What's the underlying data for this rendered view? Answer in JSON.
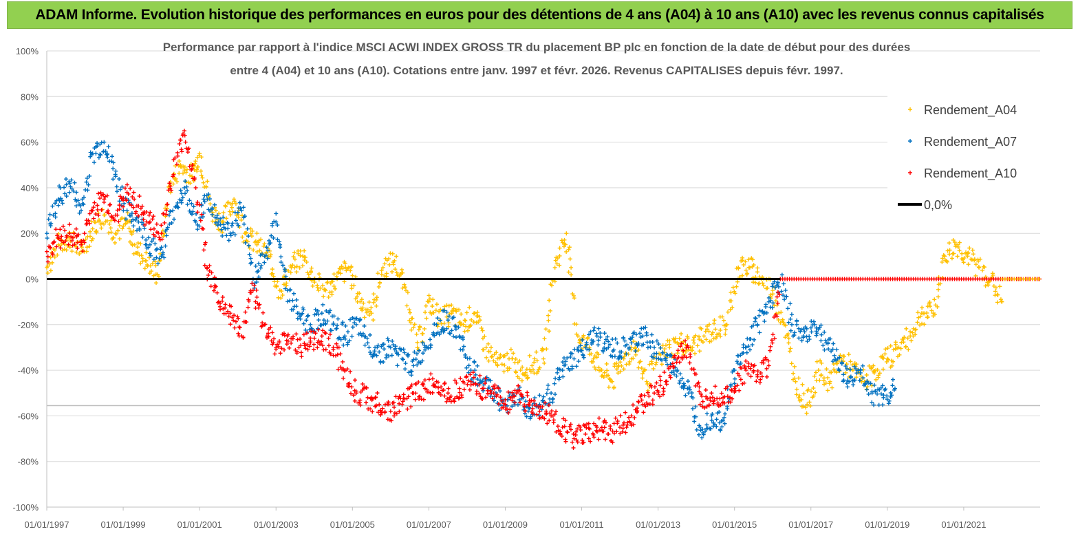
{
  "banner": {
    "title": "ADAM Informe. Evolution historique des performances en euros pour des détentions de 4 ans (A04) à 10 ans (A10) avec les revenus connus capitalisés"
  },
  "chart_data": {
    "type": "scatter",
    "title_line1": "Performance par rapport à l'indice MSCI ACWI INDEX GROSS TR  du placement BP plc en fonction de la date de début pour des durées",
    "title_line2": "entre 4 (A04) et 10 ans (A10). Cotations entre janv. 1997 et févr. 2026. Revenus CAPITALISES depuis févr. 1997.",
    "xlabel": "",
    "ylabel": "",
    "xlim": [
      1997.0,
      2023.0
    ],
    "ylim": [
      -100,
      100
    ],
    "y_ticks": [
      100,
      80,
      60,
      40,
      20,
      0,
      -20,
      -40,
      -60,
      -80,
      -100
    ],
    "y_tick_labels": [
      "100%",
      "80%",
      "60%",
      "40%",
      "20%",
      "0%",
      "-20%",
      "-40%",
      "-60%",
      "-80%",
      "-100%"
    ],
    "x_ticks": [
      1997,
      1999,
      2001,
      2003,
      2005,
      2007,
      2009,
      2011,
      2013,
      2015,
      2017,
      2019,
      2021
    ],
    "x_tick_labels": [
      "01/01/1997",
      "01/01/1999",
      "01/01/2001",
      "01/01/2003",
      "01/01/2005",
      "01/01/2007",
      "01/01/2009",
      "01/01/2011",
      "01/01/2013",
      "01/01/2015",
      "01/01/2017",
      "01/01/2019",
      "01/01/2021"
    ],
    "grid": "horizontal",
    "legend_position": "top-right",
    "reference_line": {
      "name": "0,0%",
      "value": 0,
      "color": "#000000"
    },
    "series": [
      {
        "name": "Rendement_A04",
        "color": "#ffc000",
        "x": [
          1997.0,
          1997.3,
          1997.6,
          1997.9,
          1998.2,
          1998.5,
          1998.8,
          1999.1,
          1999.3,
          1999.6,
          1999.9,
          2000.2,
          2000.5,
          2000.8,
          2001.0,
          2001.3,
          2001.6,
          2001.9,
          2002.2,
          2002.5,
          2002.8,
          2003.1,
          2003.4,
          2003.7,
          2004.0,
          2004.3,
          2004.6,
          2004.9,
          2005.2,
          2005.5,
          2005.8,
          2006.1,
          2006.4,
          2006.7,
          2007.0,
          2007.3,
          2007.6,
          2007.9,
          2008.2,
          2008.5,
          2008.8,
          2009.1,
          2009.4,
          2009.7,
          2010.0,
          2010.3,
          2010.6,
          2010.9,
          2011.2,
          2011.5,
          2011.8,
          2012.1,
          2012.4,
          2012.7,
          2013.0,
          2013.3,
          2013.6,
          2013.9,
          2014.2,
          2014.5,
          2014.8,
          2015.1,
          2015.4,
          2015.7,
          2016.0,
          2016.3,
          2016.6,
          2016.9,
          2017.2,
          2017.5,
          2017.8,
          2018.1,
          2018.4,
          2018.7,
          2019.0,
          2019.3,
          2019.6,
          2019.9,
          2020.2,
          2020.5,
          2020.8,
          2021.1,
          2021.4,
          2021.7,
          2022.0
        ],
        "values": [
          5,
          15,
          18,
          12,
          22,
          28,
          20,
          25,
          15,
          8,
          2,
          40,
          50,
          45,
          55,
          30,
          25,
          35,
          20,
          15,
          10,
          -5,
          5,
          10,
          0,
          -5,
          0,
          5,
          -10,
          -15,
          5,
          8,
          -5,
          -30,
          -10,
          -18,
          -15,
          -20,
          -15,
          -30,
          -38,
          -35,
          -40,
          -38,
          -35,
          5,
          20,
          -25,
          -30,
          -40,
          -45,
          -35,
          -30,
          -45,
          -35,
          -30,
          -28,
          -30,
          -25,
          -22,
          -20,
          5,
          5,
          0,
          -5,
          -20,
          -45,
          -55,
          -40,
          -45,
          -35,
          -40,
          -45,
          -40,
          -35,
          -30,
          -25,
          -15,
          -15,
          10,
          15,
          10,
          5,
          0,
          -10
        ],
        "values_note": "approximate trace read from chart"
      },
      {
        "name": "Rendement_A07",
        "color": "#0070c0",
        "x": [
          1997.0,
          1997.3,
          1997.6,
          1997.9,
          1998.2,
          1998.5,
          1998.8,
          1999.1,
          1999.4,
          1999.7,
          2000.0,
          2000.3,
          2000.6,
          2000.9,
          2001.2,
          2001.5,
          2001.8,
          2002.1,
          2002.4,
          2002.7,
          2003.0,
          2003.3,
          2003.6,
          2003.9,
          2004.2,
          2004.5,
          2004.8,
          2005.1,
          2005.4,
          2005.7,
          2006.0,
          2006.3,
          2006.6,
          2006.9,
          2007.2,
          2007.5,
          2007.8,
          2008.1,
          2008.4,
          2008.7,
          2009.0,
          2009.3,
          2009.6,
          2009.9,
          2010.2,
          2010.5,
          2010.8,
          2011.1,
          2011.4,
          2011.7,
          2012.0,
          2012.3,
          2012.6,
          2012.9,
          2013.2,
          2013.5,
          2013.8,
          2014.1,
          2014.4,
          2014.7,
          2015.0,
          2015.3,
          2015.6,
          2015.9,
          2016.2,
          2016.5,
          2016.8,
          2017.1,
          2017.4,
          2017.7,
          2018.0,
          2018.3,
          2018.6,
          2018.9,
          2019.2
        ],
        "values": [
          20,
          35,
          42,
          30,
          55,
          60,
          45,
          30,
          25,
          15,
          10,
          30,
          40,
          25,
          35,
          25,
          20,
          30,
          0,
          10,
          25,
          -5,
          -15,
          -20,
          -15,
          -20,
          -25,
          -20,
          -28,
          -32,
          -30,
          -35,
          -38,
          -30,
          -20,
          -18,
          -25,
          -40,
          -45,
          -50,
          -55,
          -50,
          -58,
          -55,
          -50,
          -40,
          -35,
          -30,
          -25,
          -30,
          -32,
          -28,
          -25,
          -30,
          -35,
          -40,
          -50,
          -65,
          -60,
          -62,
          -40,
          -30,
          -20,
          -10,
          0,
          -20,
          -25,
          -20,
          -28,
          -35,
          -45,
          -40,
          -50,
          -52,
          -48
        ],
        "values_note": "approximate trace read from chart"
      },
      {
        "name": "Rendement_A10",
        "color": "#ff0000",
        "x": [
          1997.0,
          1997.3,
          1997.6,
          1997.9,
          1998.2,
          1998.5,
          1998.8,
          1999.1,
          1999.4,
          1999.7,
          2000.0,
          2000.3,
          2000.6,
          2000.9,
          2001.2,
          2001.5,
          2001.8,
          2002.1,
          2002.4,
          2002.7,
          2003.0,
          2003.3,
          2003.6,
          2003.9,
          2004.2,
          2004.5,
          2004.8,
          2005.1,
          2005.4,
          2005.7,
          2006.0,
          2006.3,
          2006.6,
          2006.9,
          2007.2,
          2007.5,
          2007.8,
          2008.1,
          2008.4,
          2008.7,
          2009.0,
          2009.3,
          2009.6,
          2009.9,
          2010.2,
          2010.5,
          2010.8,
          2011.1,
          2011.4,
          2011.7,
          2012.0,
          2012.3,
          2012.6,
          2012.9,
          2013.2,
          2013.5,
          2013.8,
          2014.1,
          2014.4,
          2014.7,
          2015.0,
          2015.3,
          2015.6,
          2015.9,
          2016.2
        ],
        "values": [
          12,
          18,
          20,
          15,
          30,
          35,
          28,
          38,
          32,
          25,
          20,
          45,
          65,
          40,
          5,
          -10,
          -15,
          -25,
          -5,
          -20,
          -30,
          -25,
          -30,
          -28,
          -25,
          -30,
          -40,
          -50,
          -52,
          -55,
          -58,
          -55,
          -50,
          -48,
          -45,
          -50,
          -48,
          -45,
          -48,
          -50,
          -55,
          -50,
          -55,
          -58,
          -60,
          -65,
          -70,
          -68,
          -65,
          -68,
          -65,
          -60,
          -55,
          -50,
          -45,
          -35,
          -30,
          -55,
          -50,
          -52,
          -48,
          -40,
          -42,
          -38,
          0
        ],
        "values_note": "approximate trace read from chart; 0% plateau after 2016"
      }
    ]
  }
}
